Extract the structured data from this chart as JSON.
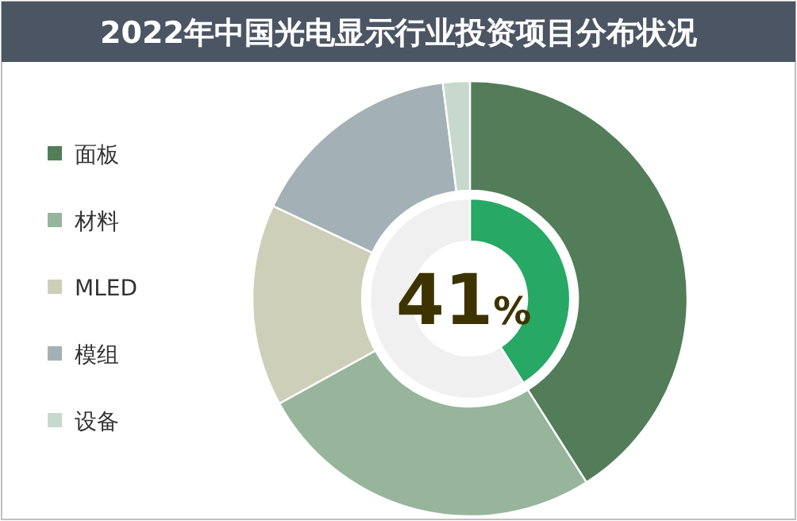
{
  "chart_data": [
    {
      "type": "donut",
      "title": "2022年中国光电显示行业投资项目分布状况",
      "categories": [
        "面板",
        "材料",
        "MLED",
        "模组",
        "设备"
      ],
      "values": [
        41,
        26,
        15,
        16,
        2
      ],
      "colors": [
        "#527d58",
        "#97b59b",
        "#cdcfb8",
        "#a3b1b7",
        "#c6d9cc"
      ],
      "legend": "left"
    },
    {
      "type": "donut",
      "categories": [
        null,
        null
      ],
      "values": [
        41,
        59
      ],
      "colors": [
        "#27a865",
        "#f0f0f0"
      ],
      "annotations": [
        "41%"
      ],
      "legend": false
    }
  ]
}
